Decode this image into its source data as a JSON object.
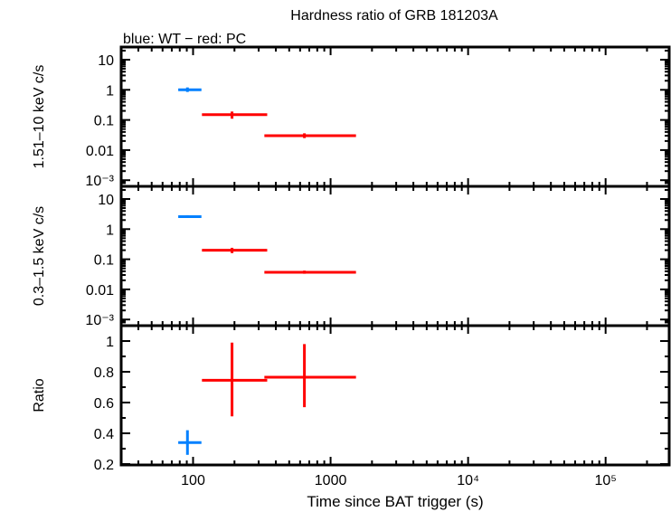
{
  "title": "Hardness ratio of GRB 181203A",
  "subtitle": "blue: WT − red: PC",
  "colors": {
    "WT": "#0080ff",
    "PC": "#ff0000",
    "axes": "#000000"
  },
  "chart_data": [
    {
      "type": "scatter",
      "panel": "top",
      "ylabel": "1.51–10 keV c/s",
      "yscale": "log",
      "ylim": [
        0.0005,
        20
      ],
      "xscale": "log",
      "xlim": [
        30,
        290000
      ],
      "yticks": [
        {
          "v": 10,
          "label": "10"
        },
        {
          "v": 1,
          "label": "1"
        },
        {
          "v": 0.1,
          "label": "0.1"
        },
        {
          "v": 0.01,
          "label": "0.01"
        },
        {
          "v": 0.001,
          "label": "10⁻³"
        }
      ],
      "series": [
        {
          "name": "WT",
          "color": "#0080ff",
          "points": [
            {
              "x": 91,
              "xlo": 78,
              "xhi": 115,
              "y": 1.0,
              "ylo": 0.85,
              "yhi": 1.2
            }
          ]
        },
        {
          "name": "PC",
          "color": "#ff0000",
          "points": [
            {
              "x": 192,
              "xlo": 116,
              "xhi": 346,
              "y": 0.15,
              "ylo": 0.11,
              "yhi": 0.19
            },
            {
              "x": 645,
              "xlo": 330,
              "xhi": 1530,
              "y": 0.03,
              "ylo": 0.025,
              "yhi": 0.036
            }
          ]
        }
      ]
    },
    {
      "type": "scatter",
      "panel": "middle",
      "ylabel": "0.3–1.5 keV c/s",
      "yscale": "log",
      "ylim": [
        0.0005,
        20
      ],
      "xscale": "log",
      "xlim": [
        30,
        290000
      ],
      "yticks": [
        {
          "v": 10,
          "label": "10"
        },
        {
          "v": 1,
          "label": "1"
        },
        {
          "v": 0.1,
          "label": "0.1"
        },
        {
          "v": 0.01,
          "label": "0.01"
        },
        {
          "v": 0.001,
          "label": "10⁻³"
        }
      ],
      "series": [
        {
          "name": "WT",
          "color": "#0080ff",
          "points": [
            {
              "x": 91,
              "xlo": 78,
              "xhi": 115,
              "y": 2.6,
              "ylo": 2.4,
              "yhi": 2.9
            }
          ]
        },
        {
          "name": "PC",
          "color": "#ff0000",
          "points": [
            {
              "x": 192,
              "xlo": 116,
              "xhi": 346,
              "y": 0.2,
              "ylo": 0.16,
              "yhi": 0.24
            },
            {
              "x": 645,
              "xlo": 330,
              "xhi": 1530,
              "y": 0.037,
              "ylo": 0.033,
              "yhi": 0.042
            }
          ]
        }
      ]
    },
    {
      "type": "scatter",
      "panel": "bottom",
      "ylabel": "Ratio",
      "xlabel": "Time since BAT trigger (s)",
      "yscale": "linear",
      "ylim": [
        0.2,
        1.05
      ],
      "xscale": "log",
      "xlim": [
        30,
        290000
      ],
      "yticks": [
        {
          "v": 0.2,
          "label": "0.2"
        },
        {
          "v": 0.4,
          "label": "0.4"
        },
        {
          "v": 0.6,
          "label": "0.6"
        },
        {
          "v": 0.8,
          "label": "0.8"
        },
        {
          "v": 1,
          "label": "1"
        }
      ],
      "xticks": [
        {
          "v": 100,
          "label": "100"
        },
        {
          "v": 1000,
          "label": "1000"
        },
        {
          "v": 10000,
          "label": "10⁴"
        },
        {
          "v": 100000,
          "label": "10⁵"
        }
      ],
      "series": [
        {
          "name": "WT",
          "color": "#0080ff",
          "points": [
            {
              "x": 91,
              "xlo": 78,
              "xhi": 115,
              "y": 0.34,
              "ylo": 0.26,
              "yhi": 0.42
            }
          ]
        },
        {
          "name": "PC",
          "color": "#ff0000",
          "points": [
            {
              "x": 192,
              "xlo": 116,
              "xhi": 346,
              "y": 0.745,
              "ylo": 0.51,
              "yhi": 0.99
            },
            {
              "x": 645,
              "xlo": 330,
              "xhi": 1530,
              "y": 0.765,
              "ylo": 0.57,
              "yhi": 0.98
            }
          ]
        }
      ]
    }
  ]
}
